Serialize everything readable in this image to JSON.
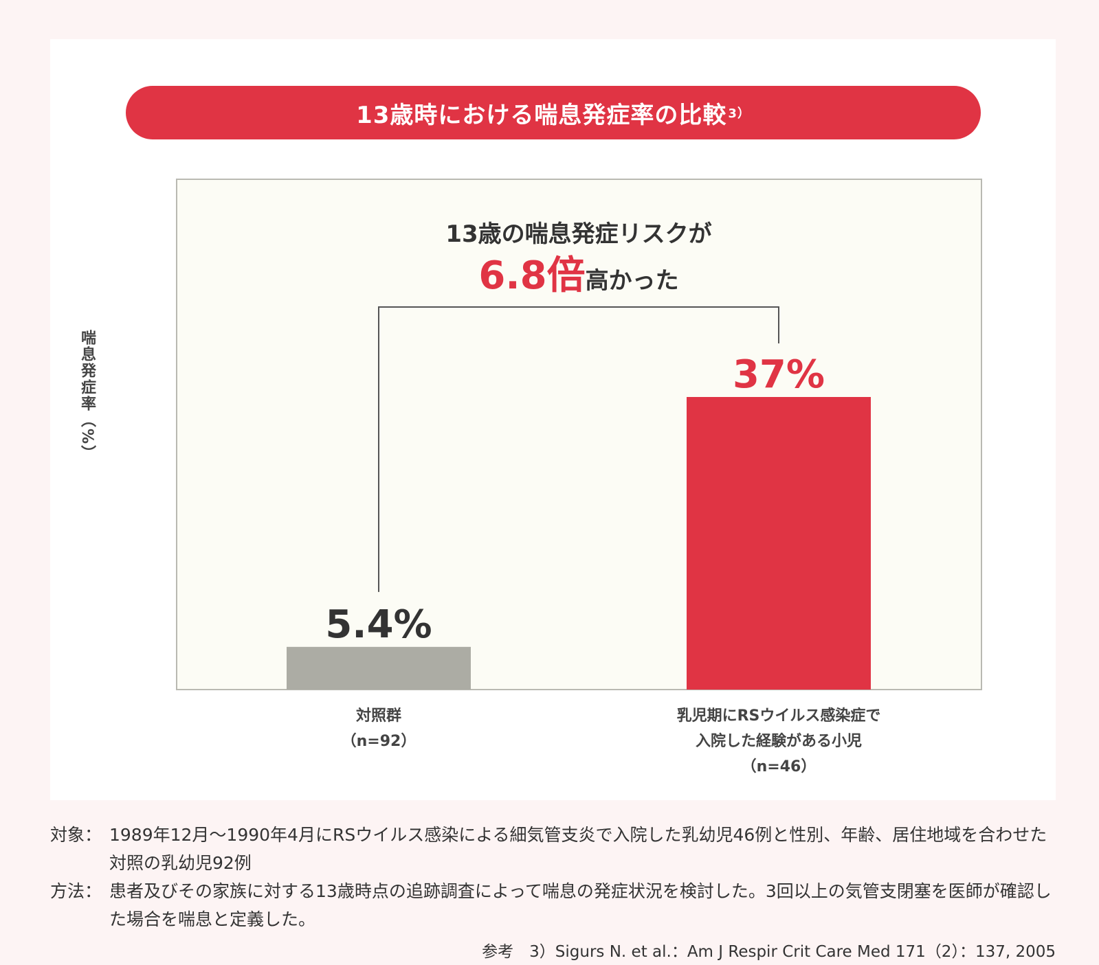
{
  "page_title": "13歳時における喘息発症率の比較",
  "page_title_ref": "3）",
  "annotation": {
    "line1": "13歳の喘息発症リスクが",
    "highlight": "6.8倍",
    "rest": "高かった"
  },
  "colors": {
    "accent": "#e03444",
    "control_bar": "#acaca4",
    "plot_bg": "#fcfcf5",
    "plot_border": "#b9b9b2"
  },
  "chart_data": {
    "type": "bar",
    "title": "13歳時における喘息発症率の比較",
    "ylabel": "喘息発症率（%）",
    "xlabel": "",
    "ylim": [
      0,
      45
    ],
    "grid": false,
    "categories": [
      {
        "line1": "対照群",
        "line2": "（n=92）",
        "line3": ""
      },
      {
        "line1": "乳児期にRSウイルス感染症で",
        "line2": "入院した経験がある小児",
        "line3": "（n=46）"
      }
    ],
    "values": [
      5.4,
      37
    ],
    "value_labels": [
      "5.4%",
      "37%"
    ]
  },
  "notes": [
    {
      "key": "対象：",
      "text": "1989年12月～1990年4月にRSウイルス感染による細気管支炎で入院した乳幼児46例と性別、年齢、居住地域を合わせた対照の乳幼児92例"
    },
    {
      "key": "方法：",
      "text": "患者及びその家族に対する13歳時点の追跡調査によって喘息の発症状況を検討した。3回以上の気管支閉塞を医師が確認した場合を喘息と定義した。"
    }
  ],
  "reference": "参考　3）Sigurs N. et al.：Am J Respir Crit Care Med 171（2）：137, 2005"
}
